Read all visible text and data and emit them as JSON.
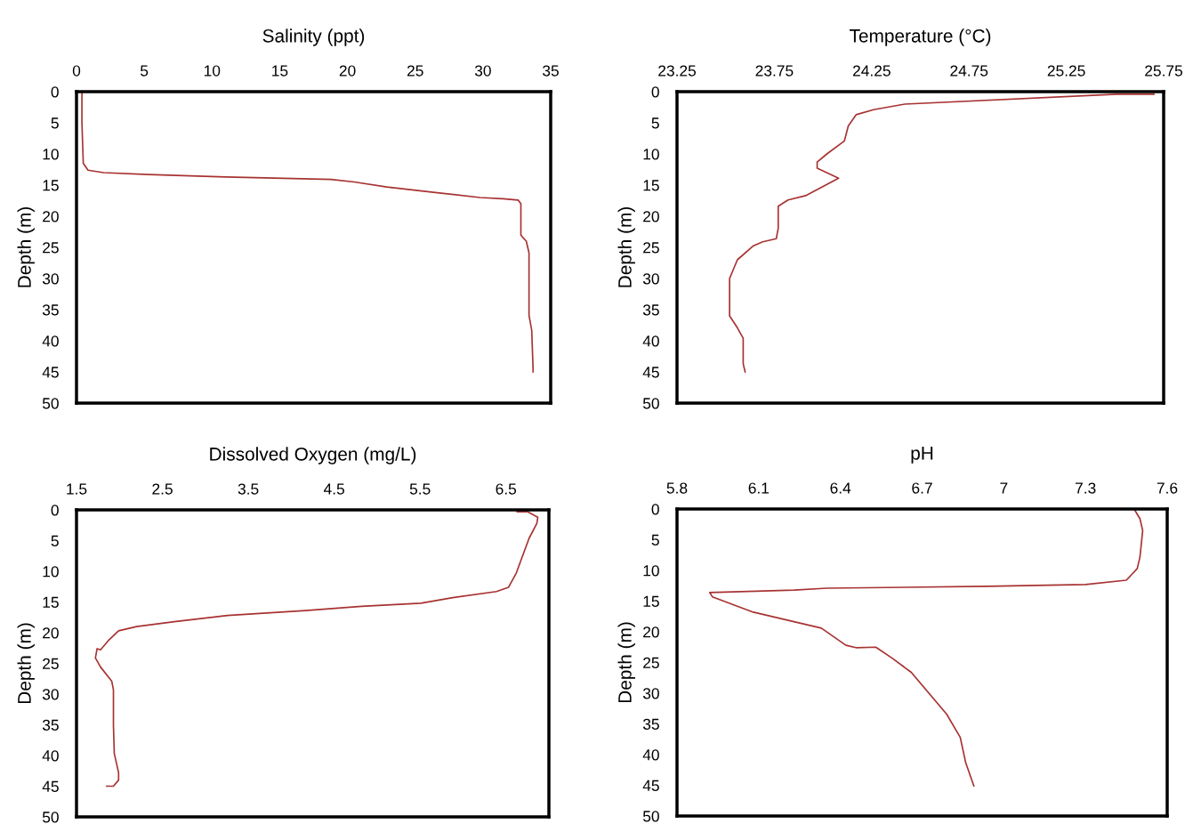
{
  "chart_data": [
    {
      "type": "line",
      "title": "Salinity (ppt)",
      "ylabel": "Depth (m)",
      "xlim": [
        0,
        35
      ],
      "xticks": [
        0,
        5,
        10,
        15,
        20,
        25,
        30,
        35
      ],
      "ylim": [
        50,
        0
      ],
      "yticks": [
        0,
        5,
        10,
        15,
        20,
        25,
        30,
        35,
        40,
        45,
        50
      ],
      "line_style": "solid",
      "series": [
        {
          "color": "#a83232",
          "x": [
            0.4,
            0.4,
            0.5,
            0.85,
            2.0,
            5.3,
            11.0,
            18.8,
            20.5,
            22.9,
            26.5,
            29.8,
            31.5,
            32.6,
            32.8,
            32.8,
            32.9,
            33.2,
            33.4,
            33.4,
            33.6,
            33.7,
            33.7
          ],
          "values": [
            0,
            5,
            11.5,
            12.6,
            13.0,
            13.3,
            13.7,
            14.1,
            14.5,
            15.3,
            16.2,
            17.0,
            17.2,
            17.4,
            18.0,
            23.0,
            23.3,
            24.0,
            25.9,
            35.9,
            38.3,
            44.5,
            45.0
          ]
        }
      ]
    },
    {
      "type": "line",
      "title": "Temperature (°C)",
      "ylabel": "Depth (m)",
      "xlim": [
        23.25,
        25.75
      ],
      "xticks": [
        23.25,
        23.75,
        24.25,
        24.75,
        25.25,
        25.75
      ],
      "ylim": [
        50,
        0
      ],
      "yticks": [
        0,
        5,
        10,
        15,
        20,
        25,
        30,
        35,
        40,
        45,
        50
      ],
      "line_style": "solid",
      "series": [
        {
          "color": "#a83232",
          "x": [
            25.7,
            25.51,
            24.42,
            24.26,
            24.17,
            24.13,
            24.11,
            24.02,
            23.97,
            23.97,
            24.08,
            24.02,
            23.91,
            23.82,
            23.77,
            23.77,
            23.76,
            23.69,
            23.64,
            23.56,
            23.52,
            23.52,
            23.56,
            23.59,
            23.59,
            23.6
          ],
          "values": [
            0.4,
            0.4,
            2.0,
            2.9,
            3.7,
            5.5,
            7.9,
            10.0,
            11.3,
            12.3,
            13.9,
            14.9,
            16.7,
            17.4,
            18.4,
            21.9,
            23.6,
            24.1,
            24.8,
            27.0,
            30.0,
            36.0,
            37.9,
            39.6,
            43.7,
            45.0
          ]
        }
      ]
    },
    {
      "type": "line",
      "title": "Dissolved Oxygen (mg/L)",
      "ylabel": "Depth (m)",
      "xlim": [
        1.5,
        7
      ],
      "xticks": [
        1.5,
        2.5,
        3.5,
        4.5,
        5.5,
        6.5
      ],
      "ylim": [
        50,
        0
      ],
      "yticks": [
        0,
        5,
        10,
        15,
        20,
        25,
        30,
        35,
        40,
        45,
        50
      ],
      "line_style": "solid",
      "series": [
        {
          "color": "#a83232",
          "x": [
            6.63,
            6.75,
            6.87,
            6.86,
            6.77,
            6.68,
            6.62,
            6.53,
            6.39,
            5.88,
            5.51,
            4.82,
            4.17,
            3.26,
            2.64,
            2.2,
            1.99,
            1.87,
            1.78,
            1.74,
            1.72,
            1.78,
            1.91,
            1.93,
            1.93,
            1.94,
            1.99,
            1.99,
            1.93,
            1.85
          ],
          "values": [
            0.3,
            0.3,
            1.2,
            2.2,
            4.6,
            8.0,
            10.3,
            12.6,
            13.3,
            14.3,
            15.2,
            15.7,
            16.4,
            17.2,
            18.2,
            19.0,
            19.7,
            21.3,
            22.8,
            22.6,
            24.1,
            25.6,
            27.9,
            29.3,
            35.1,
            39.7,
            42.8,
            44.0,
            45.0,
            45.0
          ]
        }
      ]
    },
    {
      "type": "line",
      "title": "pH",
      "ylabel": "Depth (m)",
      "xlim": [
        5.8,
        7.6
      ],
      "xticks": [
        5.8,
        6.1,
        6.4,
        6.7,
        7,
        7.3,
        7.6
      ],
      "ylim": [
        50,
        0
      ],
      "yticks": [
        0,
        5,
        10,
        15,
        20,
        25,
        30,
        35,
        40,
        45,
        50
      ],
      "line_style": "solid",
      "series": [
        {
          "color": "#a83232",
          "x": [
            7.48,
            7.5,
            7.51,
            7.5,
            7.49,
            7.45,
            7.3,
            6.94,
            6.35,
            6.23,
            5.92,
            5.93,
            6.08,
            6.33,
            6.42,
            6.46,
            6.53,
            6.59,
            6.66,
            6.79,
            6.84,
            6.86,
            6.89
          ],
          "values": [
            0.1,
            1.6,
            3.5,
            7.8,
            9.7,
            11.6,
            12.3,
            12.6,
            12.9,
            13.2,
            13.6,
            14.3,
            16.8,
            19.4,
            22.2,
            22.6,
            22.5,
            24.3,
            26.6,
            33.4,
            37.2,
            41.3,
            45.1
          ]
        }
      ]
    }
  ]
}
